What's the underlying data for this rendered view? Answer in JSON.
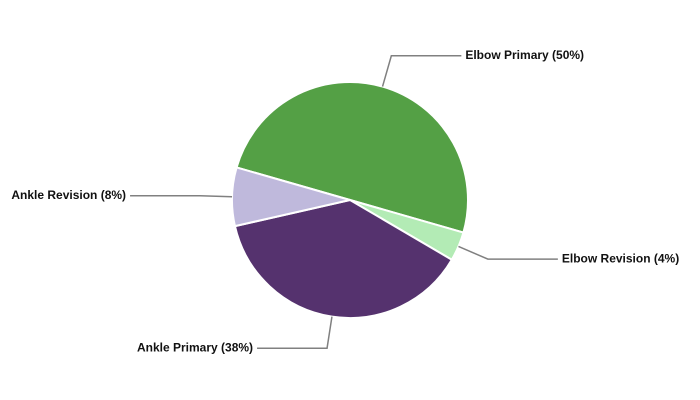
{
  "chart_data": {
    "type": "pie",
    "values": [
      50,
      4,
      38,
      8
    ],
    "value_labels": [
      "Elbow Primary (50%)",
      "Elbow Revision (4%)",
      "Ankle Primary (38%)",
      "Ankle Revision (8%)"
    ],
    "colors": [
      "#54a045",
      "#b3ebb5",
      "#55326e",
      "#bfb9dc"
    ]
  }
}
